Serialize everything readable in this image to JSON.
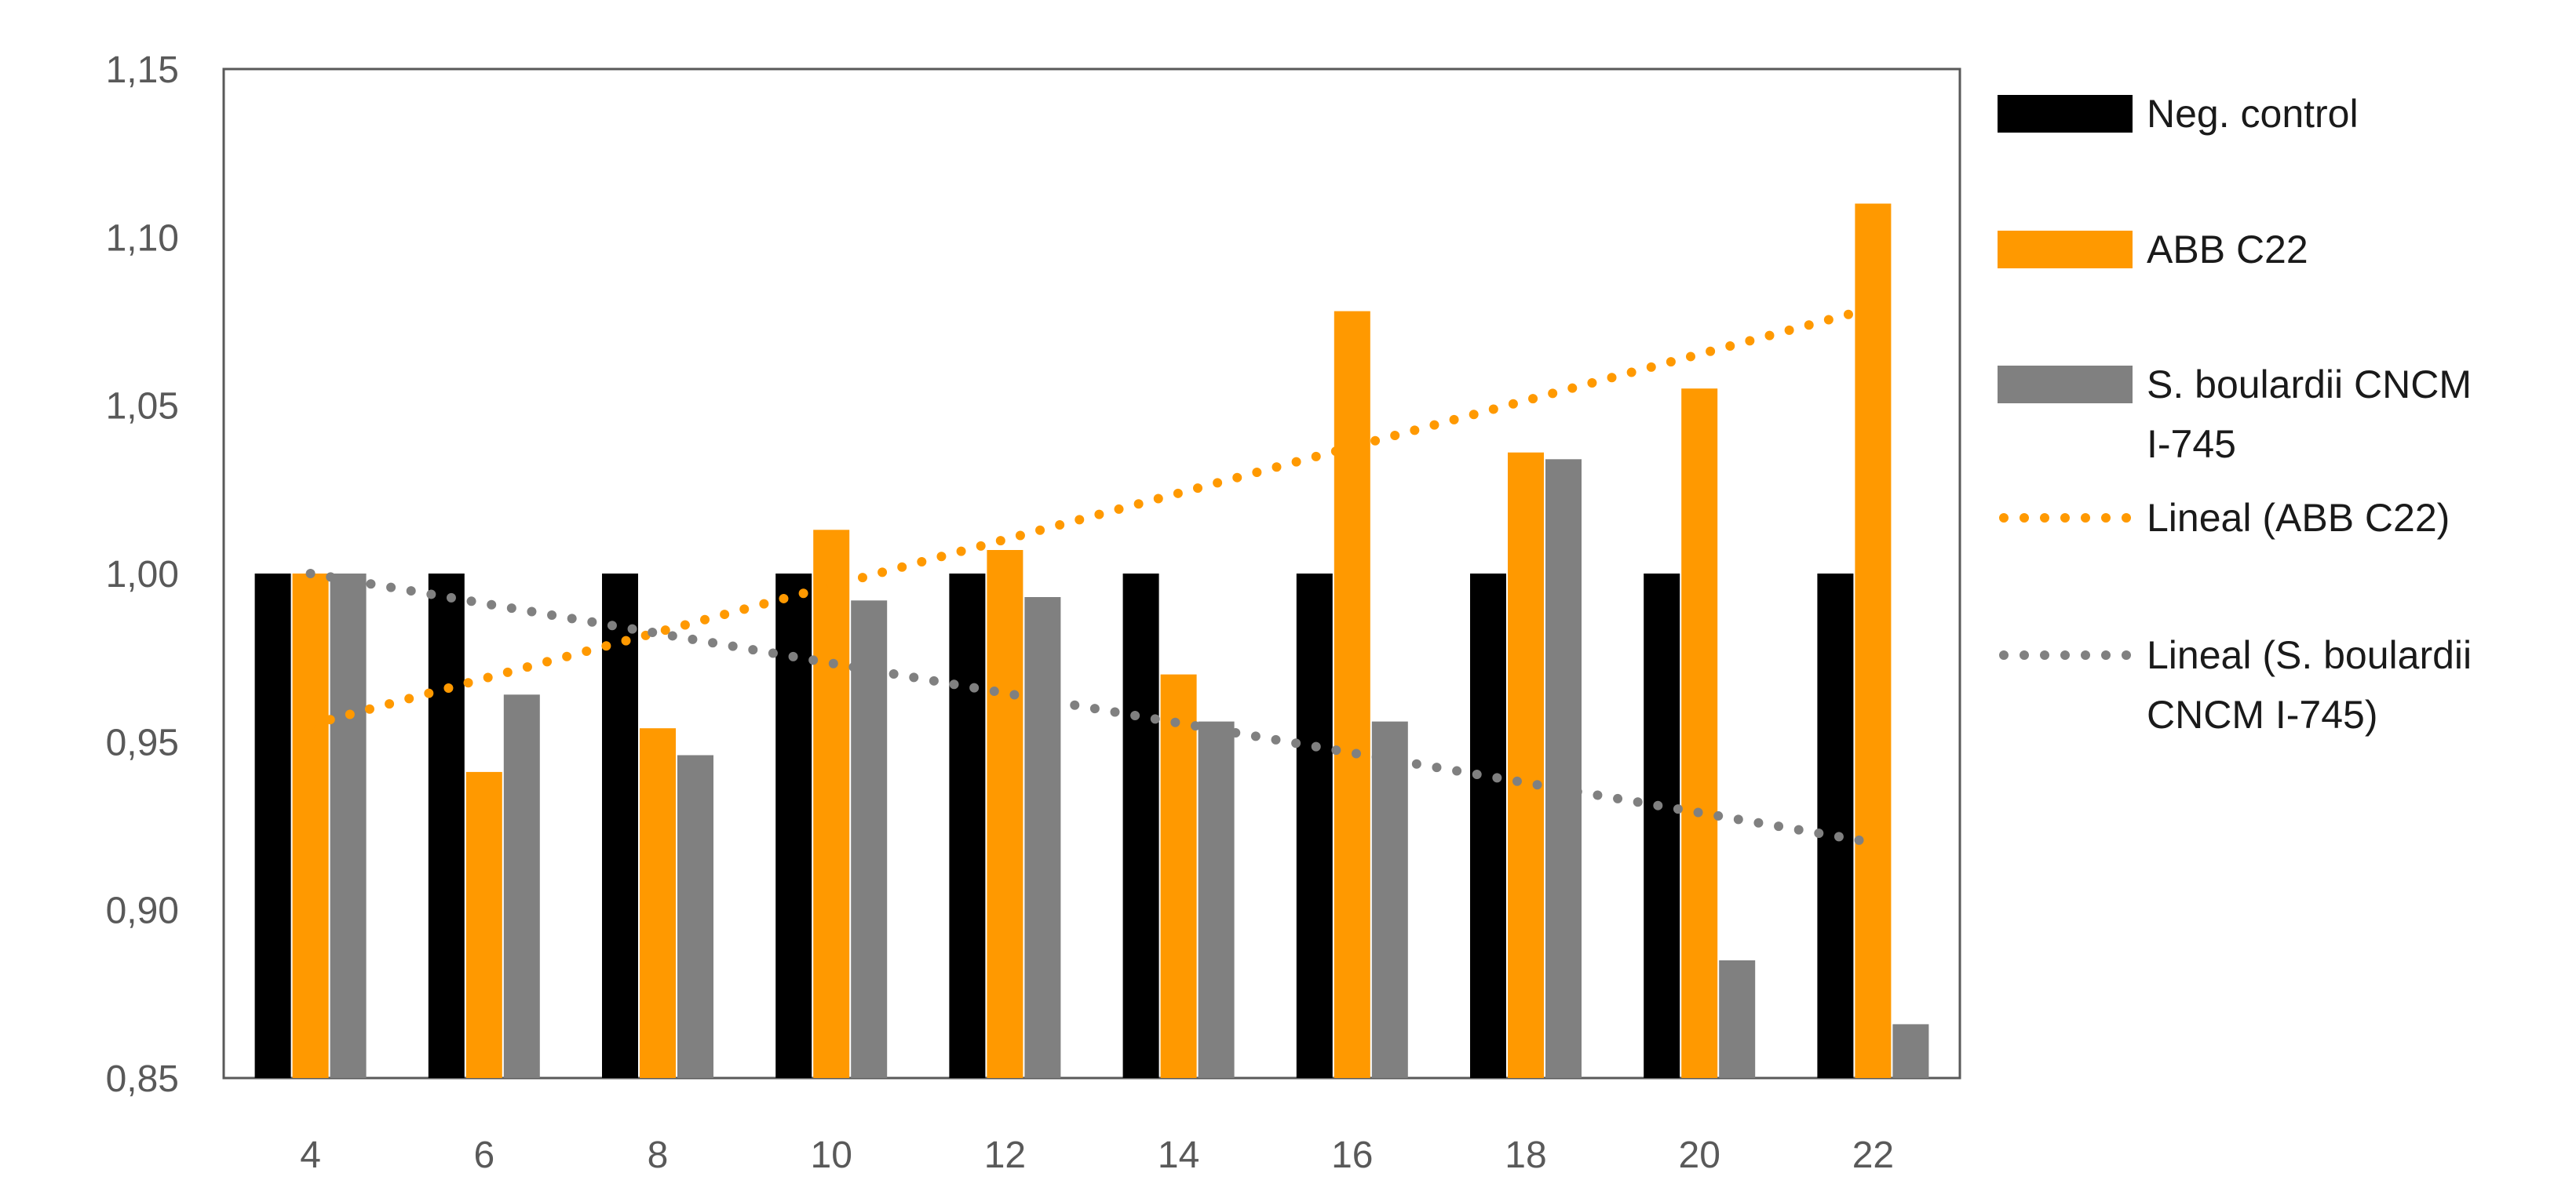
{
  "chart_data": {
    "type": "bar",
    "categories": [
      "4",
      "6",
      "8",
      "10",
      "12",
      "14",
      "16",
      "18",
      "20",
      "22"
    ],
    "series": [
      {
        "name": "Neg. control",
        "color": "#000000",
        "values": [
          1.0,
          1.0,
          1.0,
          1.0,
          1.0,
          1.0,
          1.0,
          1.0,
          1.0,
          1.0
        ]
      },
      {
        "name": "ABB C22",
        "color": "#FF9900",
        "values": [
          1.0,
          0.941,
          0.954,
          1.013,
          1.007,
          0.97,
          1.078,
          1.036,
          1.055,
          1.11
        ]
      },
      {
        "name": "S. boulardii CNCM I-745",
        "color": "#808080",
        "values": [
          1.0,
          0.964,
          0.946,
          0.992,
          0.993,
          0.956,
          0.956,
          1.034,
          0.885,
          0.866
        ]
      }
    ],
    "trendlines": [
      {
        "name": "Lineal (ABB C22)",
        "color": "#FF9900",
        "style": "dotted",
        "start": 0.955,
        "end": 1.079
      },
      {
        "name": "Lineal (S. boulardii CNCM I-745)",
        "color": "#808080",
        "style": "dotted",
        "start": 1.0,
        "end": 0.92
      }
    ],
    "yticks": [
      "0,85",
      "0,90",
      "0,95",
      "1,00",
      "1,05",
      "1,10",
      "1,15"
    ],
    "ylim": [
      0.85,
      1.15
    ],
    "legend": {
      "position": "right",
      "entries": [
        {
          "lines": [
            "Neg. control"
          ],
          "color": "#000000",
          "kind": "bar"
        },
        {
          "lines": [
            "ABB C22"
          ],
          "color": "#FF9900",
          "kind": "bar"
        },
        {
          "lines": [
            "S. boulardii CNCM",
            "I-745"
          ],
          "color": "#808080",
          "kind": "bar"
        },
        {
          "lines": [
            "Lineal (ABB C22)"
          ],
          "color": "#FF9900",
          "kind": "dots"
        },
        {
          "lines": [
            "Lineal (S. boulardii",
            "CNCM I-745)"
          ],
          "color": "#808080",
          "kind": "dots"
        }
      ]
    },
    "grid": false
  }
}
